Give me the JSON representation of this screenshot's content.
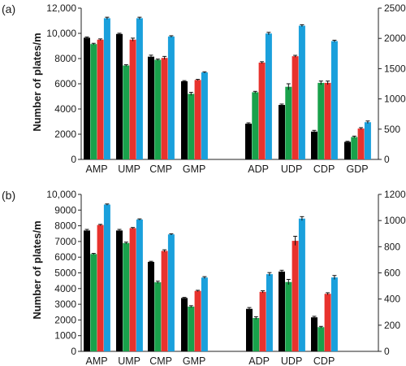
{
  "colors": {
    "black": "#000000",
    "green": "#19a14b",
    "red": "#e8322d",
    "blue": "#1aa0dc"
  },
  "chart_data": [
    {
      "panel_label": "(a)",
      "type": "bar",
      "ylabel": "Number of plates/m",
      "grid": false,
      "series_colors": [
        "black",
        "green",
        "red",
        "blue"
      ],
      "left_axis": {
        "ylim": [
          0,
          12000
        ],
        "ticks": [
          "0",
          "2000",
          "4000",
          "6000",
          "8000",
          "10,000",
          "12,000"
        ]
      },
      "right_axis": {
        "ylim": [
          0,
          2500
        ],
        "ticks": [
          "0",
          "500",
          "1000",
          "1500",
          "2000",
          "2500"
        ]
      },
      "groups": [
        {
          "label": "AMP",
          "axis": "left",
          "values": [
            9650,
            9150,
            9500,
            11200
          ],
          "errors": [
            60,
            60,
            60,
            80
          ]
        },
        {
          "label": "UMP",
          "axis": "left",
          "values": [
            9950,
            7450,
            9500,
            11200
          ],
          "errors": [
            60,
            60,
            120,
            80
          ]
        },
        {
          "label": "CMP",
          "axis": "left",
          "values": [
            8150,
            7900,
            8050,
            9750
          ],
          "errors": [
            120,
            60,
            120,
            60
          ]
        },
        {
          "label": "GMP",
          "axis": "left",
          "values": [
            6200,
            5200,
            6300,
            6900
          ],
          "errors": [
            50,
            120,
            50,
            50
          ]
        },
        {
          "label": "ADP",
          "axis": "right",
          "values": [
            590,
            1110,
            1600,
            2080
          ],
          "errors": [
            15,
            15,
            15,
            20
          ]
        },
        {
          "label": "UDP",
          "axis": "right",
          "values": [
            900,
            1200,
            1705,
            2210
          ],
          "errors": [
            15,
            50,
            15,
            15
          ]
        },
        {
          "label": "CDP",
          "axis": "right",
          "values": [
            460,
            1265,
            1265,
            1955
          ],
          "errors": [
            20,
            30,
            30,
            15
          ]
        },
        {
          "label": "GDP",
          "axis": "right",
          "values": [
            290,
            370,
            510,
            615
          ],
          "errors": [
            10,
            15,
            15,
            20
          ]
        }
      ]
    },
    {
      "panel_label": "(b)",
      "type": "bar",
      "ylabel": "Number of plates/m",
      "grid": false,
      "series_colors": [
        "black",
        "green",
        "red",
        "blue"
      ],
      "left_axis": {
        "ylim": [
          0,
          10000
        ],
        "ticks": [
          "0",
          "1000",
          "2000",
          "3000",
          "4000",
          "5000",
          "6000",
          "7000",
          "8000",
          "9000",
          "10,000"
        ]
      },
      "right_axis": {
        "ylim": [
          0,
          1200
        ],
        "ticks": [
          "0",
          "200",
          "400",
          "600",
          "800",
          "1000",
          "1200"
        ]
      },
      "groups": [
        {
          "label": "AMP",
          "axis": "left",
          "values": [
            7700,
            6200,
            8050,
            9350
          ],
          "errors": [
            70,
            40,
            40,
            40
          ]
        },
        {
          "label": "UMP",
          "axis": "left",
          "values": [
            7700,
            6900,
            7850,
            8400
          ],
          "errors": [
            70,
            60,
            40,
            40
          ]
        },
        {
          "label": "CMP",
          "axis": "left",
          "values": [
            5700,
            4400,
            6400,
            7450
          ],
          "errors": [
            40,
            70,
            70,
            40
          ]
        },
        {
          "label": "GMP",
          "axis": "left",
          "values": [
            3400,
            2850,
            3850,
            4700
          ],
          "errors": [
            40,
            60,
            40,
            60
          ]
        },
        {
          "label": "ADP",
          "axis": "right",
          "values": [
            325,
            255,
            455,
            590
          ],
          "errors": [
            10,
            10,
            8,
            12
          ]
        },
        {
          "label": "UDP",
          "axis": "right",
          "values": [
            610,
            530,
            845,
            1015
          ],
          "errors": [
            10,
            20,
            35,
            15
          ]
        },
        {
          "label": "CDP",
          "axis": "right",
          "values": [
            260,
            185,
            440,
            565
          ],
          "errors": [
            8,
            6,
            8,
            15
          ]
        }
      ]
    }
  ]
}
